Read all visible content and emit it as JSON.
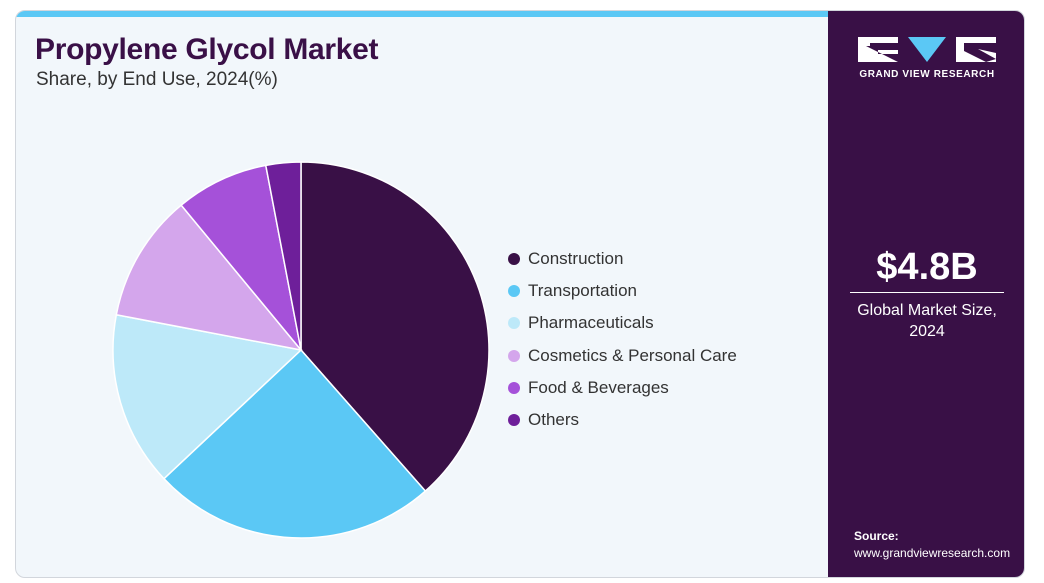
{
  "header": {
    "title": "Propylene Glycol Market",
    "subtitle": "Share, by End Use, 2024(%)"
  },
  "sidebar": {
    "logo_text": "GRAND VIEW RESEARCH",
    "market_size": "$4.8B",
    "market_size_label": "Global Market Size, 2024",
    "source_label": "Source:",
    "source_url": "www.grandviewresearch.com"
  },
  "colors": {
    "accent_bar": "#5bc8f5",
    "sidebar_bg": "#391046",
    "title": "#3a1047"
  },
  "chart_data": {
    "type": "pie",
    "title": "Propylene Glycol Market",
    "subtitle": "Share, by End Use, 2024(%)",
    "unit": "%",
    "legend_position": "right",
    "slices": [
      {
        "label": "Construction",
        "value": 38.5,
        "color": "#391046"
      },
      {
        "label": "Transportation",
        "value": 24.5,
        "color": "#5bc8f5"
      },
      {
        "label": "Pharmaceuticals",
        "value": 15.0,
        "color": "#bde9f9"
      },
      {
        "label": "Cosmetics & Personal Care",
        "value": 11.0,
        "color": "#d4a6ec"
      },
      {
        "label": "Food & Beverages",
        "value": 8.0,
        "color": "#a551d9"
      },
      {
        "label": "Others",
        "value": 3.0,
        "color": "#6e1f9a"
      }
    ]
  }
}
